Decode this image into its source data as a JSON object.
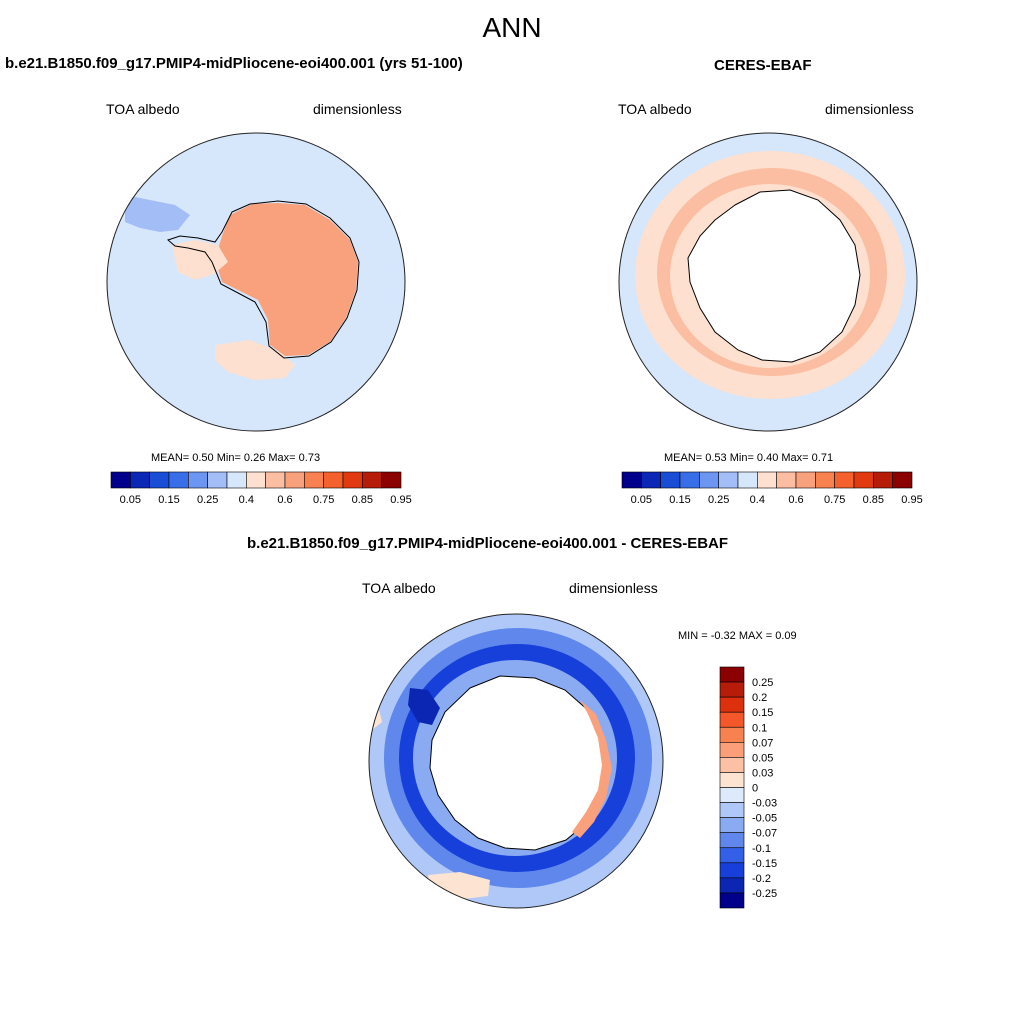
{
  "title": "ANN",
  "panels": [
    {
      "title": "b.e21.B1850.f09_g17.PMIP4-midPliocene-eoi400.001 (yrs 51-100)",
      "left_label": "TOA albedo",
      "right_label": "dimensionless",
      "stats": "MEAN=   0.50  Min=   0.26  Max=   0.73"
    },
    {
      "title": "CERES-EBAF",
      "left_label": "TOA albedo",
      "right_label": "dimensionless",
      "stats": "MEAN=   0.53  Min=   0.40  Max=   0.71"
    },
    {
      "title": "b.e21.B1850.f09_g17.PMIP4-midPliocene-eoi400.001 - CERES-EBAF",
      "left_label": "TOA albedo",
      "right_label": "dimensionless",
      "stats": "MIN =  -0.32 MAX =   0.09"
    }
  ],
  "colorbar_abs": {
    "colors": [
      "#00008b",
      "#0b27b5",
      "#1a4dd6",
      "#3a6ee8",
      "#6d96f2",
      "#a3bdf7",
      "#d6e6fb",
      "#fde0cf",
      "#fbbea2",
      "#f9a17c",
      "#f7814f",
      "#f4612c",
      "#e23a10",
      "#b51d08",
      "#8b0000"
    ],
    "tick_labels": [
      "0.05",
      "0.15",
      "0.25",
      "0.4",
      "0.6",
      "0.75",
      "0.85",
      "0.95"
    ]
  },
  "colorbar_diff": {
    "colors": [
      "#8b0000",
      "#b51d08",
      "#dd310d",
      "#f4572a",
      "#f7814f",
      "#fa9f77",
      "#fcc0a4",
      "#fde4d2",
      "#dceafc",
      "#b0c8f7",
      "#8aaaf2",
      "#5f87ec",
      "#3260e6",
      "#1640d9",
      "#0b26b3",
      "#00008b"
    ],
    "tick_labels": [
      "0.25",
      "0.2",
      "0.15",
      "0.1",
      "0.07",
      "0.05",
      "0.03",
      "0",
      "-0.03",
      "-0.05",
      "-0.07",
      "-0.1",
      "-0.15",
      "-0.2",
      "-0.25"
    ]
  }
}
